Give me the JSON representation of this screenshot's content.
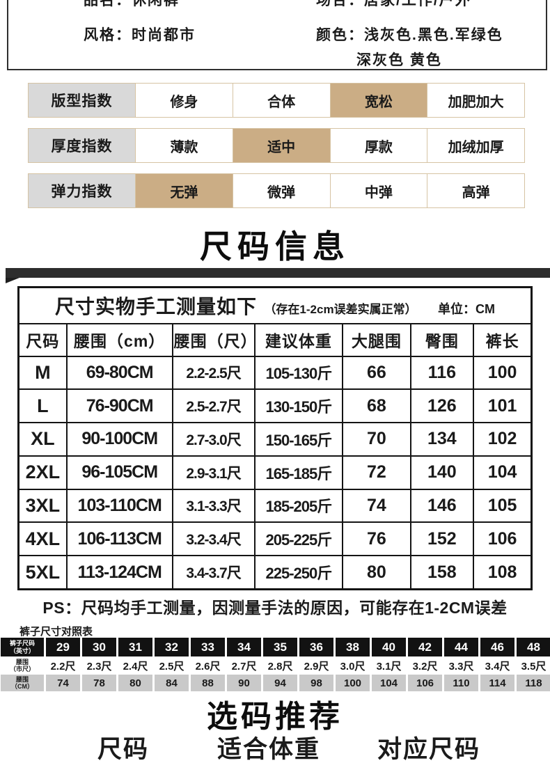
{
  "colors": {
    "highlight": "#cbad85",
    "label_bg": "#d9d9d9",
    "row_border": "#d6c3a3",
    "bar": "#2d2d2d",
    "table_border": "#141414",
    "dark_cell": "#121212",
    "gray_cell": "#c9c9c9"
  },
  "product_info": {
    "name": "品名：休闲裤",
    "occasion": "场合：居家/工作/户外",
    "style": "风格：时尚都市",
    "color_line1": "颜色：浅灰色.黑色.军绿色",
    "color_line2": "深灰色 黄色"
  },
  "index_rows": [
    {
      "label": "版型指数",
      "options": [
        {
          "text": "修身",
          "highlight": false
        },
        {
          "text": "合体",
          "highlight": false
        },
        {
          "text": "宽松",
          "highlight": true
        },
        {
          "text": "加肥加大",
          "highlight": false
        }
      ]
    },
    {
      "label": "厚度指数",
      "options": [
        {
          "text": "薄款",
          "highlight": false
        },
        {
          "text": "适中",
          "highlight": true
        },
        {
          "text": "厚款",
          "highlight": false
        },
        {
          "text": "加绒加厚",
          "highlight": false
        }
      ]
    },
    {
      "label": "弹力指数",
      "options": [
        {
          "text": "无弹",
          "highlight": true
        },
        {
          "text": "微弹",
          "highlight": false
        },
        {
          "text": "中弹",
          "highlight": false
        },
        {
          "text": "高弹",
          "highlight": false
        }
      ]
    }
  ],
  "size_section": {
    "title": "尺码信息"
  },
  "size_table": {
    "title": "尺寸实物手工测量如下",
    "title_note": "（存在1-2cm误差实属正常）",
    "unit": "单位：CM",
    "headers": [
      "尺码",
      "腰围（cm）",
      "腰围（尺）",
      "建议体重",
      "大腿围",
      "臀围",
      "裤长"
    ],
    "rows": [
      [
        "M",
        "69-80CM",
        "2.2-2.5尺",
        "105-130斤",
        "66",
        "116",
        "100"
      ],
      [
        "L",
        "76-90CM",
        "2.5-2.7尺",
        "130-150斤",
        "68",
        "126",
        "101"
      ],
      [
        "XL",
        "90-100CM",
        "2.7-3.0尺",
        "150-165斤",
        "70",
        "134",
        "102"
      ],
      [
        "2XL",
        "96-105CM",
        "2.9-3.1尺",
        "165-185斤",
        "72",
        "140",
        "104"
      ],
      [
        "3XL",
        "103-110CM",
        "3.1-3.3尺",
        "185-205斤",
        "74",
        "146",
        "105"
      ],
      [
        "4XL",
        "106-113CM",
        "3.2-3.4尺",
        "205-225斤",
        "76",
        "152",
        "106"
      ],
      [
        "5XL",
        "113-124CM",
        "3.4-3.7尺",
        "225-250斤",
        "80",
        "158",
        "108"
      ]
    ]
  },
  "ps_note": "PS：尺码均手工测量，因测量手法的原因，可能存在1-2CM误差",
  "compare_table": {
    "caption": "裤子尺寸对照表",
    "rows": [
      {
        "style": "dark",
        "label": [
          "裤子尺码",
          "（英寸）"
        ],
        "values": [
          "29",
          "30",
          "31",
          "32",
          "33",
          "34",
          "35",
          "36",
          "38",
          "40",
          "42",
          "44",
          "46",
          "48"
        ]
      },
      {
        "style": "light",
        "label": [
          "腰围",
          "（市尺）"
        ],
        "values": [
          "2.2尺",
          "2.3尺",
          "2.4尺",
          "2.5尺",
          "2.6尺",
          "2.7尺",
          "2.8尺",
          "2.9尺",
          "3.0尺",
          "3.1尺",
          "3.2尺",
          "3.3尺",
          "3.4尺",
          "3.5尺"
        ]
      },
      {
        "style": "gray",
        "label": [
          "腰围",
          "（CM）"
        ],
        "values": [
          "74",
          "78",
          "80",
          "84",
          "88",
          "90",
          "94",
          "98",
          "100",
          "104",
          "106",
          "110",
          "114",
          "118"
        ]
      }
    ]
  },
  "recommend": {
    "title": "选码推荐",
    "headers": [
      "尺码",
      "适合体重",
      "对应尺码"
    ]
  }
}
